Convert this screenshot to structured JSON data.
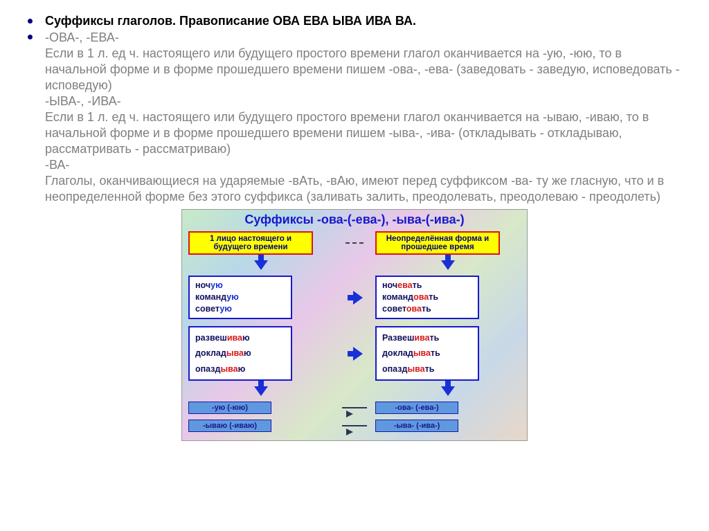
{
  "title": "Суффиксы глаголов. Правописание ОВА ЕВА ЫВА ИВА ВА.",
  "body": "-ОВА-, -ЕВА-\nЕсли в 1 л. ед ч. настоящего или будущего простого времени глагол оканчивается на -ую, -юю, то в начальной форме и в форме прошедшего времени пишем -ова-, -ева- (заведовать - заведую, исповедовать - исповедую)\n-ЫВА-, -ИВА-\nЕсли в 1 л. ед ч. настоящего или будущего простого времени глагол оканчивается на -ываю, -иваю, то в начальной форме и в форме прошедшего времени пишем -ыва-, -ива- (откладывать - откладываю, рассматривать - рассматриваю)\n-ВА-\nГлаголы, оканчивающиеся на ударяемые -вАть, -вАю, имеют перед суффиксом -ва- ту же гласную, что и в неопределенной форме без этого суффикса  (заливать залить, преодолевать, преодолеваю - преодолеть)",
  "diagram": {
    "title": "Суффиксы -ова-(-ева-), -ыва-(-ива-)",
    "header_left": "1 лицо настоящего и будущего времени",
    "header_right": "Неопределённая форма и прошедшее время",
    "group1_left": [
      {
        "stem": "ноч",
        "suf": "ую",
        "cls": "hi-blue"
      },
      {
        "stem": "команд",
        "suf": "ую",
        "cls": "hi-blue"
      },
      {
        "stem": "совет",
        "suf": "ую",
        "cls": "hi-blue"
      }
    ],
    "group1_right": [
      {
        "stem": "ноч",
        "suf": "ева",
        "end": "ть",
        "cls": "hi-red"
      },
      {
        "stem": "команд",
        "suf": "ова",
        "end": "ть",
        "cls": "hi-red"
      },
      {
        "stem": "совет",
        "suf": "ова",
        "end": "ть",
        "cls": "hi-red"
      }
    ],
    "group2_left": [
      {
        "stem": "развеш",
        "suf": "ива",
        "end": "ю",
        "cls": "hi-red"
      },
      {
        "stem": "доклад",
        "suf": "ыва",
        "end": "ю",
        "cls": "hi-red"
      },
      {
        "stem": "опазд",
        "suf": "ыва",
        "end": "ю",
        "cls": "hi-red"
      }
    ],
    "group2_right": [
      {
        "stem": "Развеш",
        "suf": "ива",
        "end": "ть",
        "cls": "hi-red"
      },
      {
        "stem": "доклад",
        "suf": "ыва",
        "end": "ть",
        "cls": "hi-red"
      },
      {
        "stem": "опазд",
        "suf": "ыва",
        "end": "ть",
        "cls": "hi-red"
      }
    ],
    "footer": {
      "left_top": "-ую (-юю)",
      "right_top": "-ова- (-ева-)",
      "left_bot": "-ываю (-иваю)",
      "right_bot": "-ыва- (-ива-)"
    },
    "colors": {
      "yellow": "#ffff00",
      "red_border": "#d81818",
      "blue_arrow": "#1830d8",
      "box_border": "#1818cc",
      "footer_bg": "#6098e0"
    }
  }
}
